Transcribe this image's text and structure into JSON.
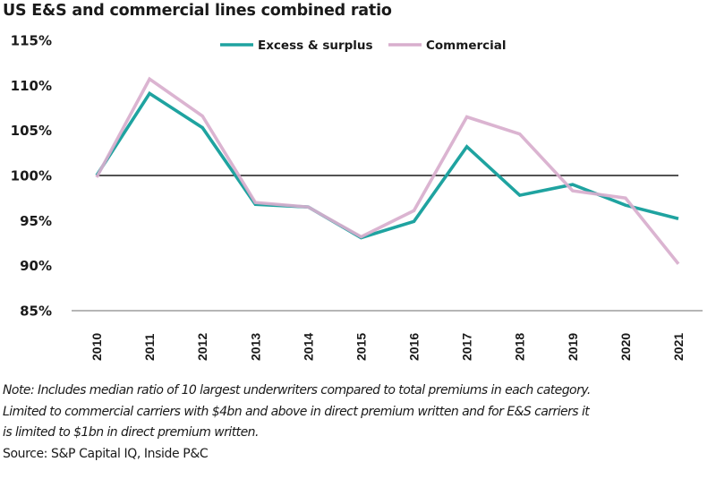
{
  "chart_data": {
    "type": "line",
    "title": "US E&S and commercial lines combined ratio",
    "xlabel": "",
    "ylabel": "",
    "categories": [
      "2010",
      "2011",
      "2012",
      "2013",
      "2014",
      "2015",
      "2016",
      "2017",
      "2018",
      "2019",
      "2020",
      "2021"
    ],
    "series": [
      {
        "name": "Excess & surplus",
        "color": "#1fa3a0",
        "values": [
          100.0,
          109.1,
          105.3,
          96.8,
          96.5,
          93.1,
          94.9,
          103.2,
          97.8,
          99.0,
          96.7,
          95.2
        ]
      },
      {
        "name": "Commercial",
        "color": "#d8aecd",
        "values": [
          99.8,
          110.7,
          106.6,
          97.0,
          96.5,
          93.2,
          96.1,
          106.5,
          104.6,
          98.3,
          97.5,
          90.2
        ]
      }
    ],
    "ylim": [
      85,
      115
    ],
    "yticks": [
      115,
      110,
      105,
      100,
      95,
      90,
      85
    ],
    "ytick_labels": [
      "115%",
      "110%",
      "105%",
      "100%",
      "95%",
      "90%",
      "85%"
    ],
    "reference_line": {
      "value": 100,
      "color": "#1a1a1a"
    },
    "grid": false,
    "legend": {
      "position": "top-center",
      "orientation": "horizontal"
    },
    "x_tick_rotation": "vertical"
  },
  "notes": {
    "note_lines": [
      "Note: Includes median ratio of 10 largest underwriters compared to total premiums in each category.",
      "Limited to commercial carriers with $4bn and above in direct premium written and for E&S carriers it",
      "is limited to $1bn in direct premium written."
    ],
    "source": "Source: S&P Capital IQ, Inside P&C"
  }
}
